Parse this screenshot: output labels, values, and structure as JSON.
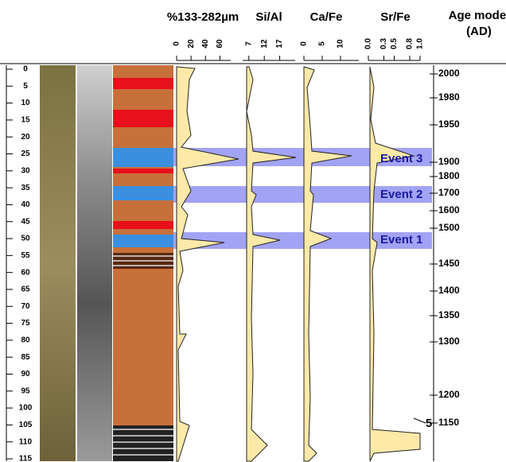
{
  "headers": {
    "grain": "%133-282µm",
    "sial": "Si/Al",
    "cafe": "Ca/Fe",
    "srfe": "Sr/Fe",
    "age_line1": "Age model",
    "age_line2": "(AD)"
  },
  "axes": {
    "grain": {
      "xlim": [
        0,
        75
      ],
      "xticks": [
        0,
        20,
        40,
        60
      ]
    },
    "sial": {
      "xlim": [
        5,
        22
      ],
      "xticks": [
        7,
        12,
        17
      ]
    },
    "cafe": {
      "xlim": [
        0,
        15
      ],
      "xticks": [
        0,
        5,
        10
      ]
    },
    "srfe": {
      "xlim": [
        0,
        1
      ],
      "xticks": [
        {
          "value": 0,
          "label": "0.0"
        },
        0.3,
        0.5,
        0.8,
        {
          "value": 1,
          "label": "1.0"
        }
      ]
    }
  },
  "depth": {
    "ylim": [
      0,
      115
    ],
    "yticks": [
      0,
      5,
      10,
      15,
      20,
      25,
      30,
      35,
      40,
      45,
      50,
      55,
      60,
      65,
      70,
      75,
      80,
      85,
      90,
      95,
      100,
      105,
      110,
      115
    ]
  },
  "age_ticks": [
    2000,
    1980,
    1950,
    1900,
    1800,
    1700,
    1600,
    1500,
    1450,
    1400,
    1350,
    1300,
    1200,
    1150
  ],
  "events": [
    "Event 3",
    "Event 2",
    "Event 1"
  ],
  "annotation": "5"
}
